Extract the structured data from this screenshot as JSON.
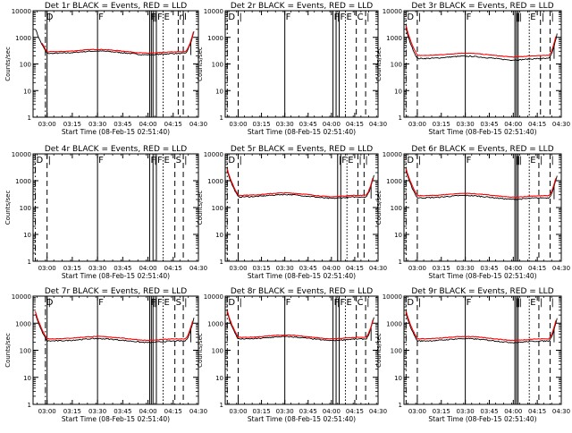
{
  "page": {
    "x_ticks": [
      "03:00",
      "03:15",
      "03:30",
      "03:45",
      "04:00",
      "04:15",
      "04:30"
    ],
    "y_ticks": [
      "1",
      "10",
      "100",
      "1000",
      "10000"
    ],
    "ylabel": "Counts/sec",
    "xlabel": "Start Time (08-Feb-15 02:51:40)"
  },
  "chart_data": [
    {
      "type": "line",
      "title": "Det 1r BLACK = Events, RED = LLD",
      "has_data": true,
      "x_range": [
        "02:51:40",
        "04:30"
      ],
      "y_range": [
        1,
        10000
      ],
      "y_scale": "log",
      "base_level": 250,
      "start_level": 8000,
      "end_level": 9000,
      "red_start_time": "02:57",
      "red_end_time": "04:27",
      "red_offset": 1.15,
      "series": [
        {
          "name": "BLACK = Events",
          "color": "#000000"
        },
        {
          "name": "RED = LLD",
          "color": "#ff0000"
        }
      ],
      "markers": [
        {
          "time": "02:59",
          "style": "dashdot",
          "label": "D"
        },
        {
          "time": "03:00",
          "style": "solid",
          "label": "|"
        },
        {
          "time": "03:30",
          "style": "solid",
          "label": "F"
        },
        {
          "time": "04:01",
          "style": "solid",
          "label": "F"
        },
        {
          "time": "04:02",
          "style": "solid",
          "label": "|"
        },
        {
          "time": "04:03",
          "style": "solid",
          "label": "|"
        },
        {
          "time": "04:05",
          "style": "solid",
          "label": "F"
        },
        {
          "time": "04:09",
          "style": "dotted",
          "label": "E"
        },
        {
          "time": "04:18",
          "style": "dashed",
          "label": "n"
        },
        {
          "time": "04:21",
          "style": "dashed",
          "label": "l"
        }
      ]
    },
    {
      "type": "line",
      "title": "Det 2r BLACK = Events, RED = LLD",
      "has_data": false,
      "x_range": [
        "02:51:40",
        "04:30"
      ],
      "y_range": [
        1,
        10000
      ],
      "y_scale": "log",
      "series": [
        {
          "name": "BLACK = Events",
          "color": "#000000"
        },
        {
          "name": "RED = LLD",
          "color": "#ff0000"
        }
      ],
      "markers": [
        {
          "time": "02:53",
          "style": "dashdot",
          "label": "D"
        },
        {
          "time": "03:00",
          "style": "dashed",
          "label": "|"
        },
        {
          "time": "03:30",
          "style": "solid",
          "label": "F"
        },
        {
          "time": "04:01",
          "style": "solid",
          "label": "F"
        },
        {
          "time": "04:03",
          "style": "solid",
          "label": "|"
        },
        {
          "time": "04:05",
          "style": "solid",
          "label": "F"
        },
        {
          "time": "04:09",
          "style": "dotted",
          "label": "E"
        },
        {
          "time": "04:16",
          "style": "dashed",
          "label": "C"
        },
        {
          "time": "04:22",
          "style": "dashed",
          "label": "|"
        }
      ]
    },
    {
      "type": "line",
      "title": "Det 3r BLACK = Events, RED = LLD",
      "has_data": true,
      "x_range": [
        "02:51:40",
        "04:30"
      ],
      "y_range": [
        1,
        10000
      ],
      "y_scale": "log",
      "base_level": 160,
      "start_level": 9000,
      "end_level": 9000,
      "red_start_time": "02:53",
      "red_end_time": "04:27",
      "red_offset": 1.3,
      "series": [
        {
          "name": "BLACK = Events",
          "color": "#000000"
        },
        {
          "name": "RED = LLD",
          "color": "#ff0000"
        }
      ],
      "markers": [
        {
          "time": "02:53",
          "style": "dashdot",
          "label": "D"
        },
        {
          "time": "03:00",
          "style": "dashed",
          "label": "|"
        },
        {
          "time": "03:30",
          "style": "solid",
          "label": "F"
        },
        {
          "time": "04:01",
          "style": "solid",
          "label": "|"
        },
        {
          "time": "04:02",
          "style": "solid",
          "label": "|"
        },
        {
          "time": "04:03",
          "style": "solid",
          "label": "|"
        },
        {
          "time": "04:10",
          "style": "dotted",
          "label": "E"
        },
        {
          "time": "04:17",
          "style": "dashed",
          "label": "|"
        },
        {
          "time": "04:23",
          "style": "dashed",
          "label": "|"
        }
      ]
    },
    {
      "type": "line",
      "title": "Det 4r BLACK = Events, RED = LLD",
      "has_data": false,
      "x_range": [
        "02:51:40",
        "04:30"
      ],
      "y_range": [
        1,
        10000
      ],
      "y_scale": "log",
      "series": [
        {
          "name": "BLACK = Events",
          "color": "#000000"
        },
        {
          "name": "RED = LLD",
          "color": "#ff0000"
        }
      ],
      "markers": [
        {
          "time": "02:53",
          "style": "dashdot",
          "label": "D"
        },
        {
          "time": "03:00",
          "style": "dashed",
          "label": "|"
        },
        {
          "time": "03:30",
          "style": "solid",
          "label": "F"
        },
        {
          "time": "04:01",
          "style": "solid",
          "label": "F"
        },
        {
          "time": "04:03",
          "style": "solid",
          "label": "|"
        },
        {
          "time": "04:05",
          "style": "solid",
          "label": "F"
        },
        {
          "time": "04:09",
          "style": "dotted",
          "label": "E"
        },
        {
          "time": "04:16",
          "style": "dashed",
          "label": "S"
        },
        {
          "time": "04:21",
          "style": "dashed",
          "label": "|"
        }
      ]
    },
    {
      "type": "line",
      "title": "Det 5r BLACK = Events, RED = LLD",
      "has_data": true,
      "x_range": [
        "02:51:40",
        "04:30"
      ],
      "y_range": [
        1,
        10000
      ],
      "y_scale": "log",
      "base_level": 250,
      "start_level": 9000,
      "end_level": 9000,
      "red_start_time": "02:53",
      "red_end_time": "04:27",
      "red_offset": 1.15,
      "series": [
        {
          "name": "BLACK = Events",
          "color": "#000000"
        },
        {
          "name": "RED = LLD",
          "color": "#ff0000"
        }
      ],
      "markers": [
        {
          "time": "02:53",
          "style": "dashdot",
          "label": "D"
        },
        {
          "time": "03:00",
          "style": "dashed",
          "label": "|"
        },
        {
          "time": "04:04",
          "style": "solid",
          "label": "|"
        },
        {
          "time": "04:06",
          "style": "solid",
          "label": "F"
        },
        {
          "time": "04:10",
          "style": "dotted",
          "label": "E"
        },
        {
          "time": "04:17",
          "style": "dashed",
          "label": "|"
        },
        {
          "time": "04:21",
          "style": "dashed",
          "label": "|"
        }
      ]
    },
    {
      "type": "line",
      "title": "Det 6r BLACK = Events, RED = LLD",
      "has_data": true,
      "x_range": [
        "02:51:40",
        "04:30"
      ],
      "y_range": [
        1,
        10000
      ],
      "y_scale": "log",
      "base_level": 230,
      "start_level": 9000,
      "end_level": 9000,
      "red_start_time": "02:53",
      "red_end_time": "04:27",
      "red_offset": 1.2,
      "series": [
        {
          "name": "BLACK = Events",
          "color": "#000000"
        },
        {
          "name": "RED = LLD",
          "color": "#ff0000"
        }
      ],
      "markers": [
        {
          "time": "02:53",
          "style": "dashdot",
          "label": "D"
        },
        {
          "time": "03:00",
          "style": "dashed",
          "label": "|"
        },
        {
          "time": "03:30",
          "style": "solid",
          "label": "F"
        },
        {
          "time": "04:01",
          "style": "solid",
          "label": "|"
        },
        {
          "time": "04:02",
          "style": "solid",
          "label": "|"
        },
        {
          "time": "04:03",
          "style": "solid",
          "label": "|"
        },
        {
          "time": "04:10",
          "style": "dotted",
          "label": "E"
        },
        {
          "time": "04:16",
          "style": "dashed",
          "label": "|"
        },
        {
          "time": "04:23",
          "style": "dashed",
          "label": "|"
        }
      ]
    },
    {
      "type": "line",
      "title": "Det 7r BLACK = Events, RED = LLD",
      "has_data": true,
      "x_range": [
        "02:51:40",
        "04:30"
      ],
      "y_range": [
        1,
        10000
      ],
      "y_scale": "log",
      "base_level": 220,
      "start_level": 9000,
      "end_level": 9000,
      "red_start_time": "02:53",
      "red_end_time": "04:27",
      "red_offset": 1.2,
      "series": [
        {
          "name": "BLACK = Events",
          "color": "#000000"
        },
        {
          "name": "RED = LLD",
          "color": "#ff0000"
        }
      ],
      "markers": [
        {
          "time": "02:59",
          "style": "dashdot",
          "label": "D"
        },
        {
          "time": "03:00",
          "style": "solid",
          "label": "|"
        },
        {
          "time": "03:30",
          "style": "solid",
          "label": "F"
        },
        {
          "time": "04:01",
          "style": "solid",
          "label": "F"
        },
        {
          "time": "04:02",
          "style": "solid",
          "label": "|"
        },
        {
          "time": "04:03",
          "style": "solid",
          "label": "|"
        },
        {
          "time": "04:05",
          "style": "solid",
          "label": "F"
        },
        {
          "time": "04:09",
          "style": "dotted",
          "label": "E"
        },
        {
          "time": "04:16",
          "style": "dashed",
          "label": "S"
        },
        {
          "time": "04:21",
          "style": "dashed",
          "label": "|"
        }
      ]
    },
    {
      "type": "line",
      "title": "Det 8r BLACK = Events, RED = LLD",
      "has_data": true,
      "x_range": [
        "02:51:40",
        "04:30"
      ],
      "y_range": [
        1,
        10000
      ],
      "y_scale": "log",
      "base_level": 260,
      "start_level": 9000,
      "end_level": 9000,
      "red_start_time": "02:53",
      "red_end_time": "04:27",
      "red_offset": 1.15,
      "series": [
        {
          "name": "BLACK = Events",
          "color": "#000000"
        },
        {
          "name": "RED = LLD",
          "color": "#ff0000"
        }
      ],
      "markers": [
        {
          "time": "02:53",
          "style": "dashdot",
          "label": "D"
        },
        {
          "time": "03:00",
          "style": "dashed",
          "label": "|"
        },
        {
          "time": "03:30",
          "style": "solid",
          "label": "F"
        },
        {
          "time": "04:01",
          "style": "solid",
          "label": "F"
        },
        {
          "time": "04:03",
          "style": "solid",
          "label": "|"
        },
        {
          "time": "04:05",
          "style": "solid",
          "label": "F"
        },
        {
          "time": "04:09",
          "style": "dotted",
          "label": "E"
        },
        {
          "time": "04:16",
          "style": "dashed",
          "label": "C"
        },
        {
          "time": "04:22",
          "style": "dashed",
          "label": "|"
        }
      ]
    },
    {
      "type": "line",
      "title": "Det 9r BLACK = Events, RED = LLD",
      "has_data": true,
      "x_range": [
        "02:51:40",
        "04:30"
      ],
      "y_range": [
        1,
        10000
      ],
      "y_scale": "log",
      "base_level": 220,
      "start_level": 9000,
      "end_level": 9000,
      "red_start_time": "02:53",
      "red_end_time": "04:27",
      "red_offset": 1.2,
      "series": [
        {
          "name": "BLACK = Events",
          "color": "#000000"
        },
        {
          "name": "RED = LLD",
          "color": "#ff0000"
        }
      ],
      "markers": [
        {
          "time": "02:53",
          "style": "dashdot",
          "label": "D"
        },
        {
          "time": "03:00",
          "style": "dashed",
          "label": "|"
        },
        {
          "time": "03:30",
          "style": "solid",
          "label": "F"
        },
        {
          "time": "04:01",
          "style": "solid",
          "label": "|"
        },
        {
          "time": "04:02",
          "style": "solid",
          "label": "|"
        },
        {
          "time": "04:03",
          "style": "solid",
          "label": "|"
        },
        {
          "time": "04:10",
          "style": "dotted",
          "label": "E"
        },
        {
          "time": "04:16",
          "style": "dashed",
          "label": "|"
        },
        {
          "time": "04:23",
          "style": "dashed",
          "label": "|"
        }
      ]
    }
  ]
}
